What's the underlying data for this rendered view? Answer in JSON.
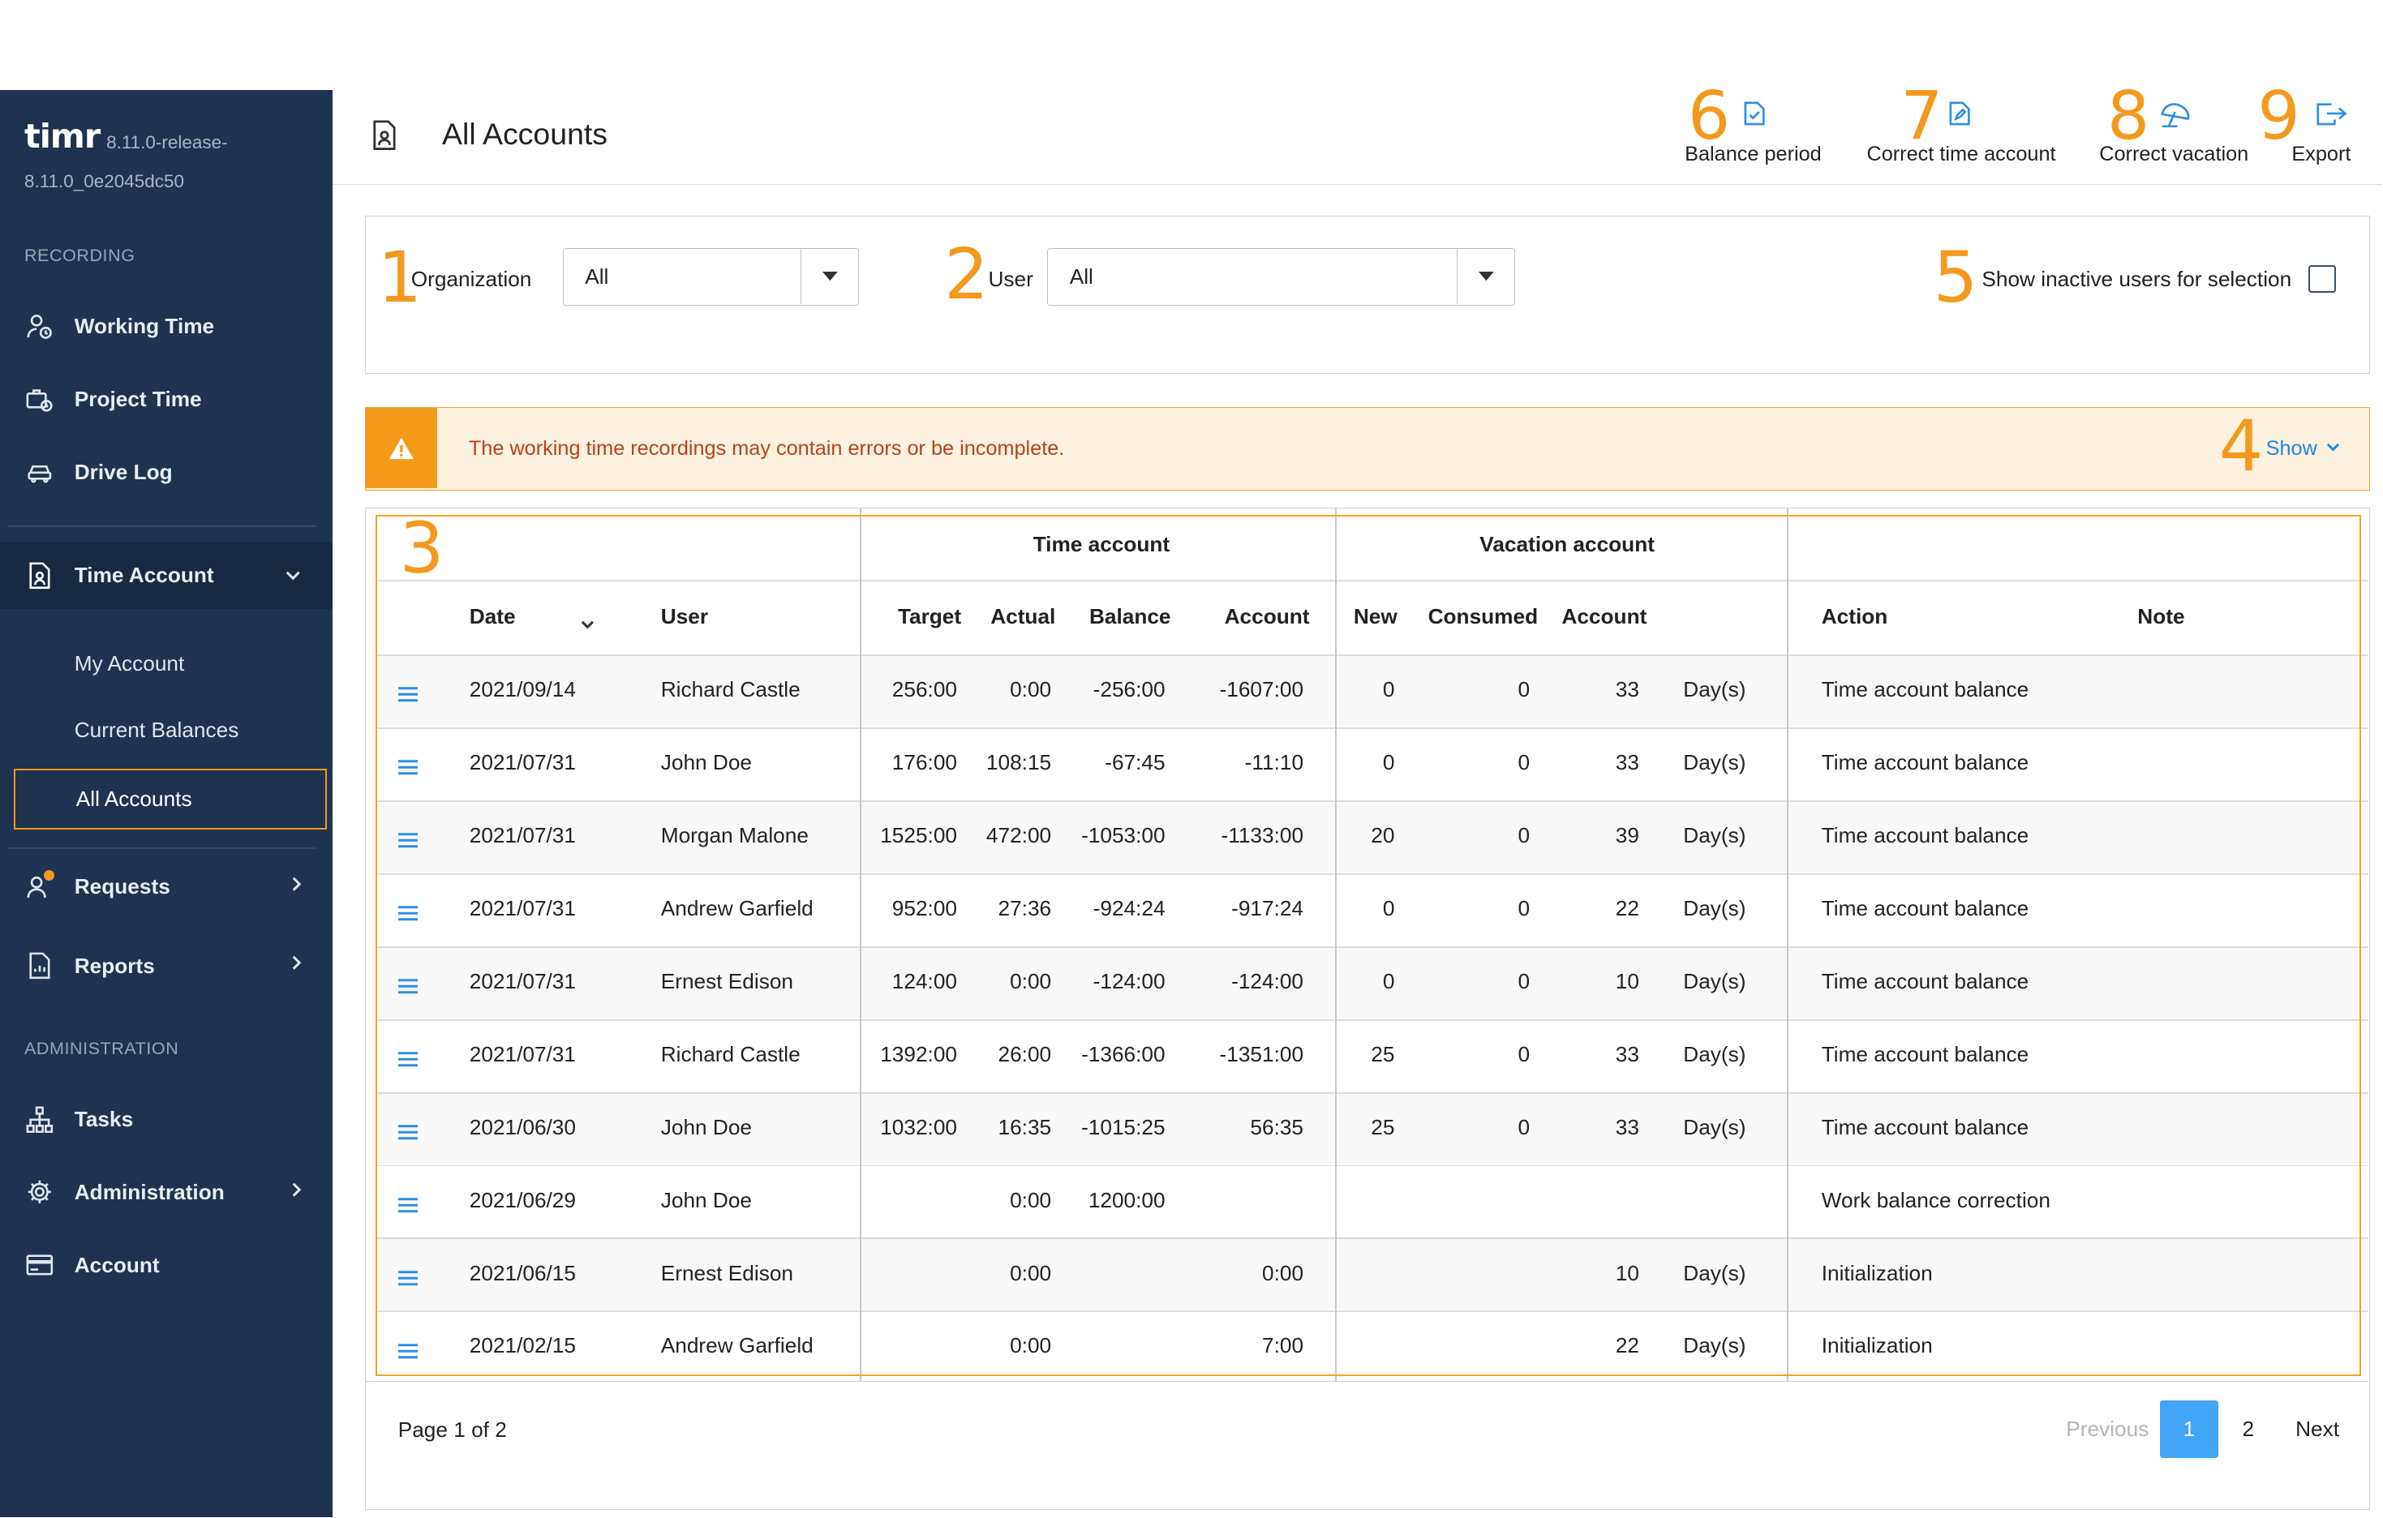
{
  "app": {
    "logo": "timr",
    "version_line1": "8.11.0-release-",
    "version_line2": "8.11.0_0e2045dc50"
  },
  "sidebar": {
    "recording_label": "RECORDING",
    "working_time": "Working Time",
    "project_time": "Project Time",
    "drive_log": "Drive Log",
    "time_account": "Time Account",
    "my_account": "My Account",
    "current_balances": "Current Balances",
    "all_accounts": "All Accounts",
    "requests": "Requests",
    "reports": "Reports",
    "administration_label": "ADMINISTRATION",
    "tasks": "Tasks",
    "administration": "Administration",
    "account": "Account"
  },
  "header": {
    "title": "All Accounts",
    "tools": [
      {
        "num": "6",
        "label": "Balance period",
        "icon": "balance-period-icon"
      },
      {
        "num": "7",
        "label": "Correct time account",
        "icon": "correct-time-icon"
      },
      {
        "num": "8",
        "label": "Correct vacation",
        "icon": "beach-umbrella-icon"
      },
      {
        "num": "9",
        "label": "Export",
        "icon": "export-icon"
      }
    ]
  },
  "filters": {
    "organization_num": "1",
    "organization_label": "Organization",
    "organization_value": "All",
    "user_num": "2",
    "user_label": "User",
    "user_value": "All",
    "inactive_num": "5",
    "inactive_label": "Show inactive users for selection",
    "inactive_checked": false
  },
  "warning": {
    "text": "The working time recordings may contain errors or be incomplete.",
    "show_num": "4",
    "show_label": "Show"
  },
  "table": {
    "annot_num": "3",
    "group_time_account": "Time account",
    "group_vacation_account": "Vacation account",
    "columns": {
      "date": "Date",
      "user": "User",
      "target": "Target",
      "actual": "Actual",
      "balance": "Balance",
      "account": "Account",
      "new": "New",
      "consumed": "Consumed",
      "vac_account": "Account",
      "action": "Action",
      "note": "Note"
    },
    "rows": [
      {
        "date": "2021/09/14",
        "user": "Richard Castle",
        "target": "256:00",
        "actual": "0:00",
        "balance": "-256:00",
        "account": "-1607:00",
        "new": "0",
        "consumed": "0",
        "vac_account": "33",
        "unit": "Day(s)",
        "action": "Time account balance",
        "note": ""
      },
      {
        "date": "2021/07/31",
        "user": "John Doe",
        "target": "176:00",
        "actual": "108:15",
        "balance": "-67:45",
        "account": "-11:10",
        "new": "0",
        "consumed": "0",
        "vac_account": "33",
        "unit": "Day(s)",
        "action": "Time account balance",
        "note": ""
      },
      {
        "date": "2021/07/31",
        "user": "Morgan Malone",
        "target": "1525:00",
        "actual": "472:00",
        "balance": "-1053:00",
        "account": "-1133:00",
        "new": "20",
        "consumed": "0",
        "vac_account": "39",
        "unit": "Day(s)",
        "action": "Time account balance",
        "note": ""
      },
      {
        "date": "2021/07/31",
        "user": "Andrew Garfield",
        "target": "952:00",
        "actual": "27:36",
        "balance": "-924:24",
        "account": "-917:24",
        "new": "0",
        "consumed": "0",
        "vac_account": "22",
        "unit": "Day(s)",
        "action": "Time account balance",
        "note": ""
      },
      {
        "date": "2021/07/31",
        "user": "Ernest Edison",
        "target": "124:00",
        "actual": "0:00",
        "balance": "-124:00",
        "account": "-124:00",
        "new": "0",
        "consumed": "0",
        "vac_account": "10",
        "unit": "Day(s)",
        "action": "Time account balance",
        "note": ""
      },
      {
        "date": "2021/07/31",
        "user": "Richard Castle",
        "target": "1392:00",
        "actual": "26:00",
        "balance": "-1366:00",
        "account": "-1351:00",
        "new": "25",
        "consumed": "0",
        "vac_account": "33",
        "unit": "Day(s)",
        "action": "Time account balance",
        "note": ""
      },
      {
        "date": "2021/06/30",
        "user": "John Doe",
        "target": "1032:00",
        "actual": "16:35",
        "balance": "-1015:25",
        "account": "56:35",
        "new": "25",
        "consumed": "0",
        "vac_account": "33",
        "unit": "Day(s)",
        "action": "Time account balance",
        "note": ""
      },
      {
        "date": "2021/06/29",
        "user": "John Doe",
        "target": "",
        "actual": "0:00",
        "balance": "1200:00",
        "account": "",
        "new": "",
        "consumed": "",
        "vac_account": "",
        "unit": "",
        "action": "Work balance correction",
        "note": ""
      },
      {
        "date": "2021/06/15",
        "user": "Ernest Edison",
        "target": "",
        "actual": "0:00",
        "balance": "",
        "account": "0:00",
        "new": "",
        "consumed": "",
        "vac_account": "10",
        "unit": "Day(s)",
        "action": "Initialization",
        "note": ""
      },
      {
        "date": "2021/02/15",
        "user": "Andrew Garfield",
        "target": "",
        "actual": "0:00",
        "balance": "",
        "account": "7:00",
        "new": "",
        "consumed": "",
        "vac_account": "22",
        "unit": "Day(s)",
        "action": "Initialization",
        "note": ""
      }
    ]
  },
  "pagination": {
    "info": "Page 1 of 2",
    "previous": "Previous",
    "page1": "1",
    "page2": "2",
    "next": "Next"
  },
  "colors": {
    "sidebar_bg": "#1f3350",
    "accent_orange": "#f39a1e",
    "link_blue": "#1e88e5",
    "active_page_blue": "#42a5f5"
  }
}
